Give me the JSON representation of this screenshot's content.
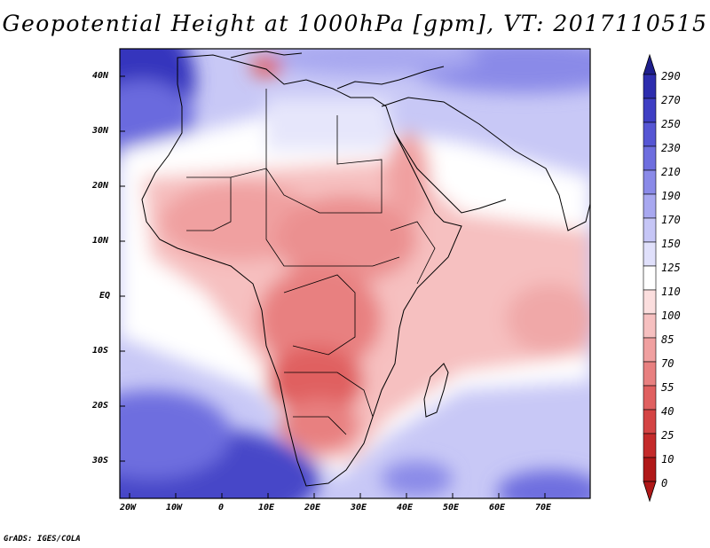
{
  "title": "Geopotential Height at 1000hPa [gpm], VT: 2017110515",
  "footer": "GrADS: IGES/COLA",
  "lat_labels": [
    "40N",
    "30N",
    "20N",
    "10N",
    "EQ",
    "10S",
    "20S",
    "30S"
  ],
  "lon_labels": [
    "20W",
    "10W",
    "0",
    "10E",
    "20E",
    "30E",
    "40E",
    "50E",
    "60E",
    "70E"
  ],
  "colorbar": {
    "levels": [
      "290",
      "270",
      "250",
      "230",
      "210",
      "190",
      "170",
      "150",
      "125",
      "110",
      "100",
      "85",
      "70",
      "55",
      "40",
      "25",
      "10",
      "0"
    ],
    "colors": [
      "#1e1e8c",
      "#2d2dae",
      "#3f3fc4",
      "#5656d4",
      "#6e6edf",
      "#8a8ae8",
      "#a8a8f0",
      "#c6c6f6",
      "#e0e0fb",
      "#ffffff",
      "#fbdede",
      "#f6c0c0",
      "#f0a0a0",
      "#e88080",
      "#e06060",
      "#d44444",
      "#c42a2a",
      "#b01818"
    ]
  },
  "colors": {
    "land_outline": "#000000",
    "border": "#000000"
  }
}
